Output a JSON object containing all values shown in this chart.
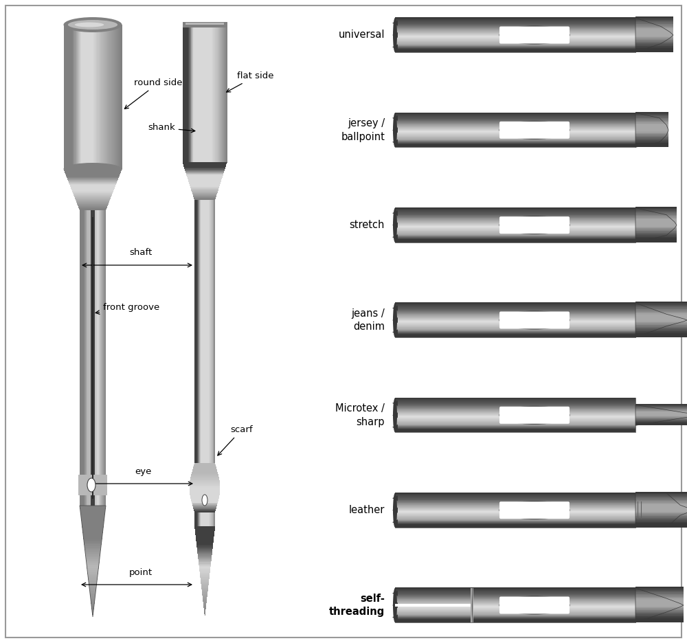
{
  "bg_color": "#ffffff",
  "border_color": "#888888",
  "needle_types": [
    "universal",
    "jersey /\nballpoint",
    "stretch",
    "jeans /\ndenim",
    "Microtex /\nsharp",
    "leather",
    "self-\nthreading"
  ],
  "tip_types": [
    "universal",
    "ballpoint",
    "stretch",
    "jeans",
    "microtex",
    "leather",
    "self_threading"
  ],
  "label_bold": [
    false,
    false,
    false,
    false,
    false,
    false,
    true
  ],
  "text_color": "#111111",
  "shank_light": "#d8d8d8",
  "shank_mid": "#b0b0b0",
  "shank_dark": "#707070",
  "shank_vdark": "#404040"
}
